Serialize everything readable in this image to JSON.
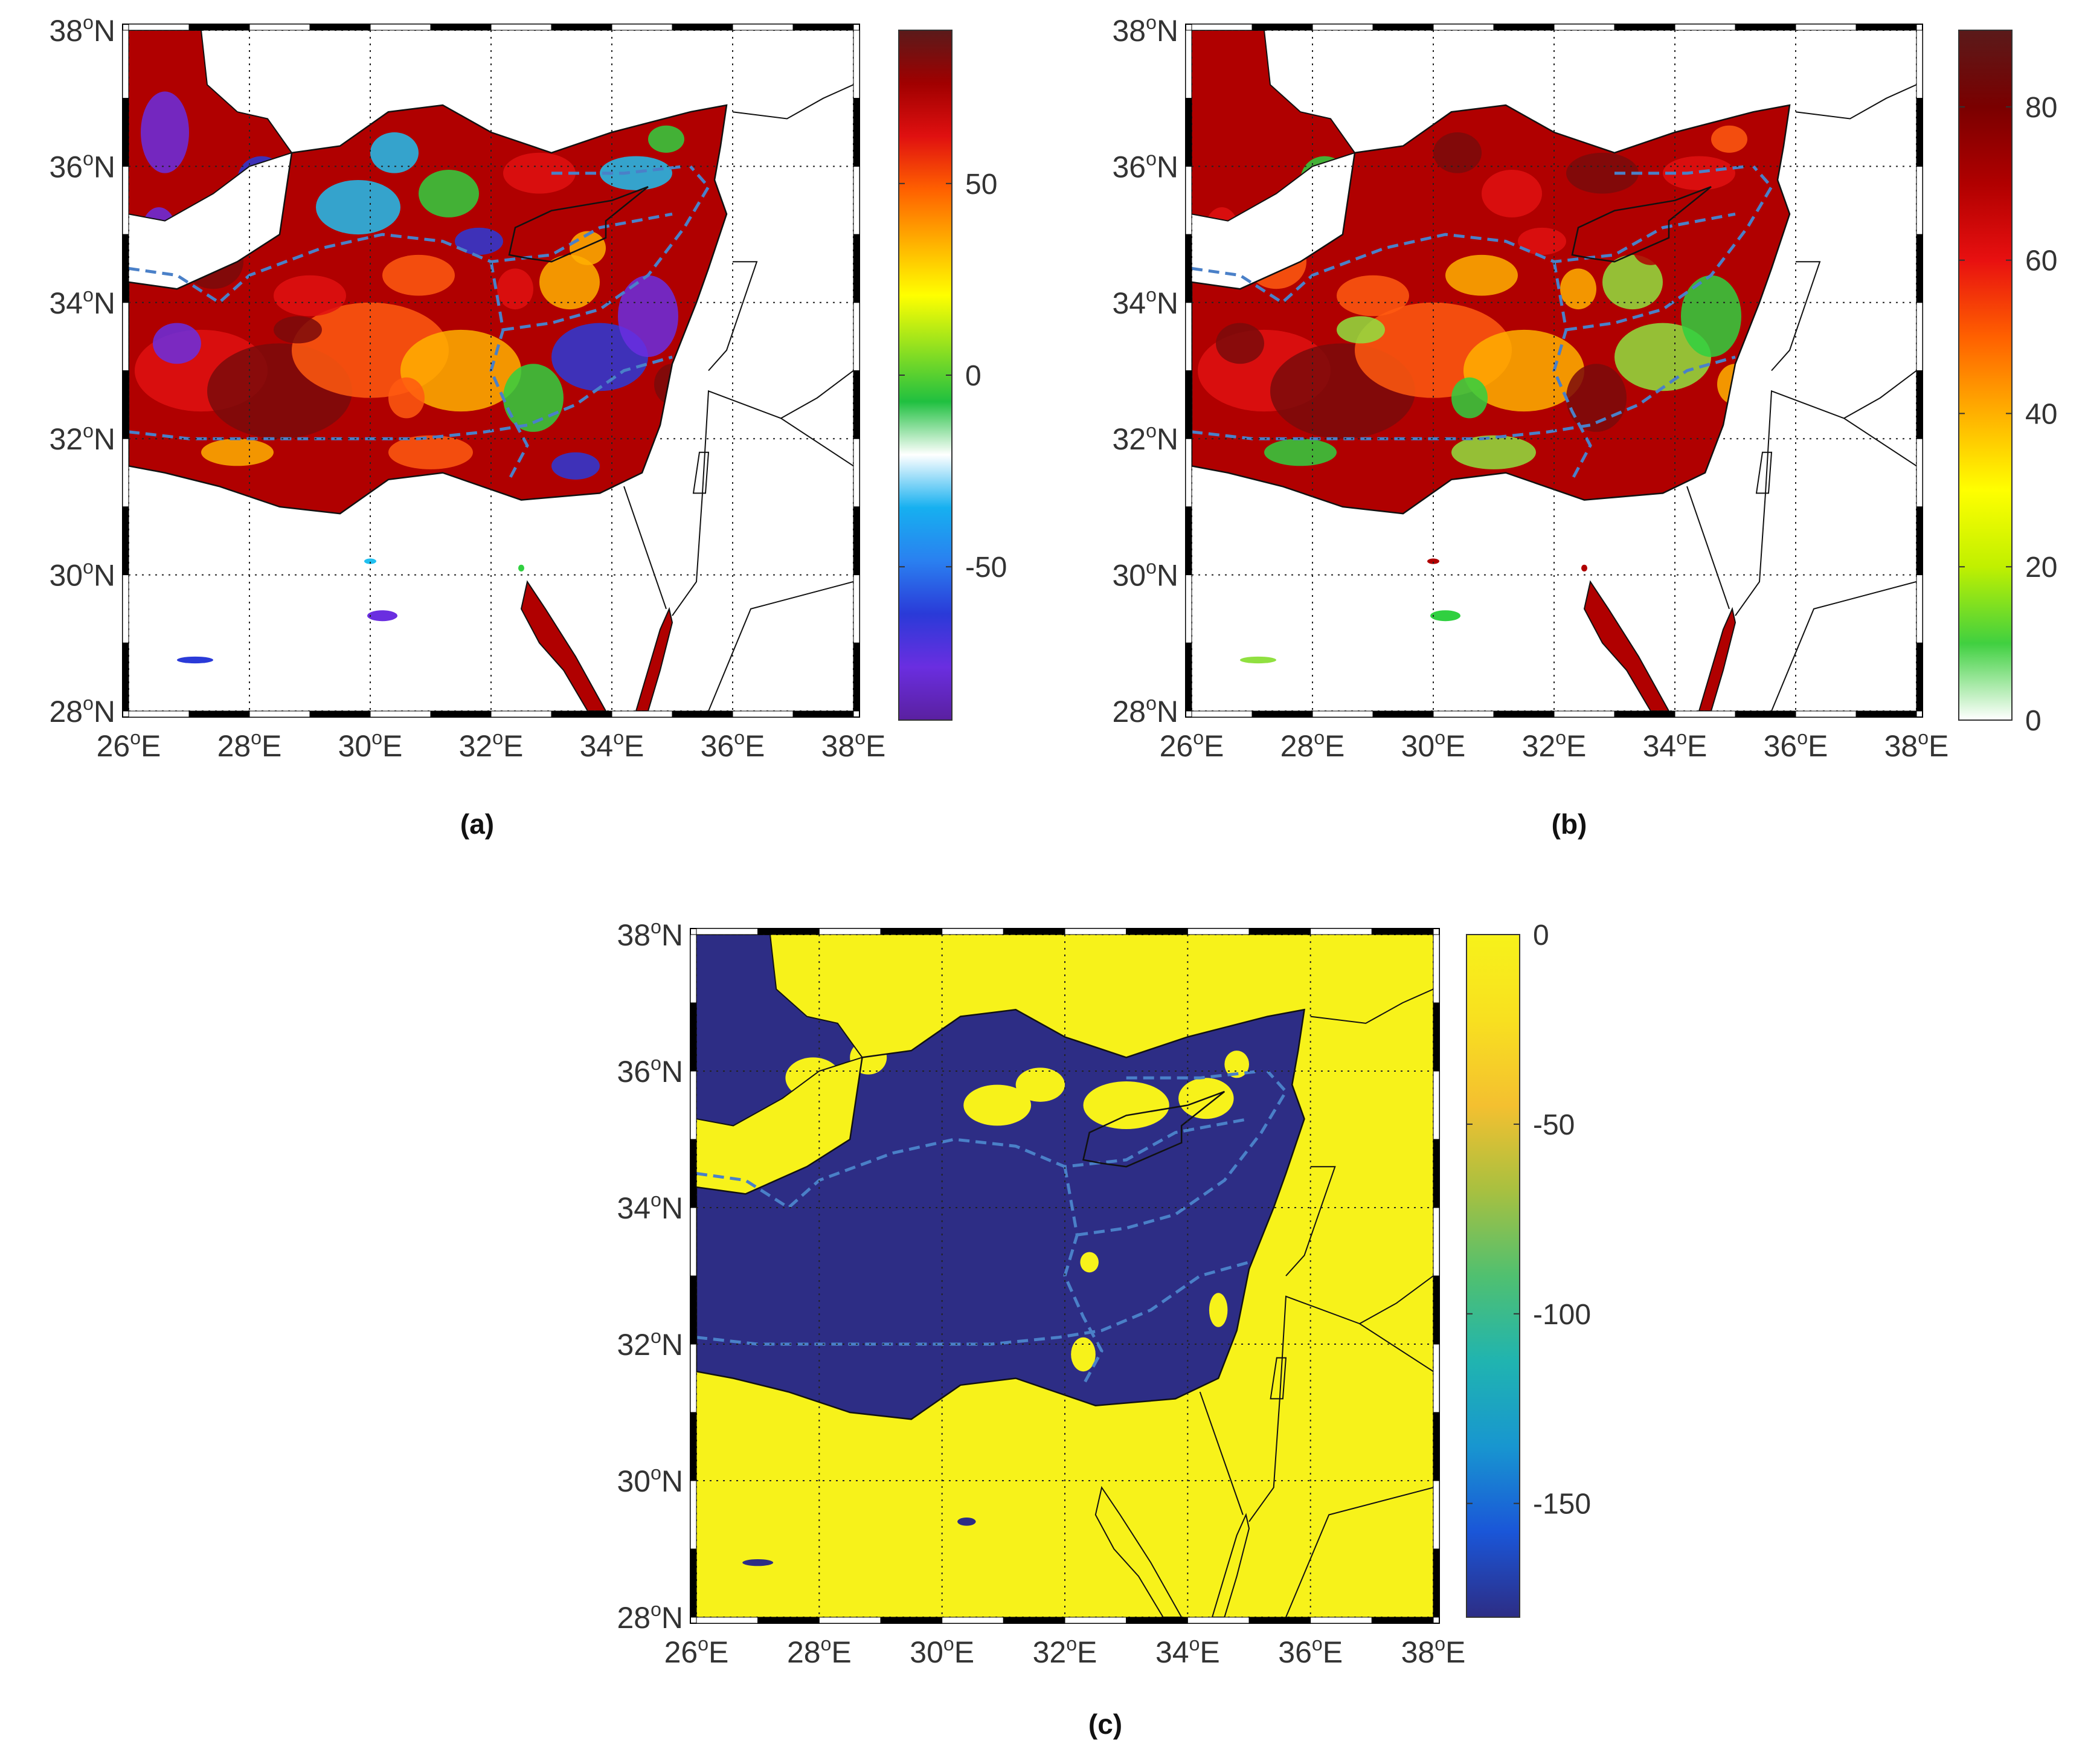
{
  "panels": [
    {
      "id": "a",
      "caption": "(a)",
      "colorbar": {
        "colors": [
          "#5a20a0",
          "#6a2ee0",
          "#2a3ad8",
          "#2a80f0",
          "#16b0f0",
          "#ffffff",
          "#20c040",
          "#90e020",
          "#ffff00",
          "#ffb000",
          "#ff6000",
          "#e01010",
          "#a00000",
          "#5a1a1a"
        ],
        "range": [
          -90,
          90
        ],
        "ticks": [
          {
            "value": 50,
            "label": "50"
          },
          {
            "value": 0,
            "label": "0"
          },
          {
            "value": -50,
            "label": "-50"
          }
        ]
      },
      "field_palette": [
        "#b00000",
        "#e01010",
        "#7a0a0a",
        "#ff5a10",
        "#ffb000",
        "#2a3ad8",
        "#6a2ee0",
        "#20c0f0",
        "#30d040"
      ]
    },
    {
      "id": "b",
      "caption": "(b)",
      "colorbar": {
        "colors": [
          "#ffffff",
          "#40d040",
          "#c0f000",
          "#ffff00",
          "#ffb000",
          "#ff6000",
          "#e81010",
          "#b00000",
          "#7a0000",
          "#5a1a1a"
        ],
        "range": [
          0,
          90
        ],
        "ticks": [
          {
            "value": 80,
            "label": "80"
          },
          {
            "value": 60,
            "label": "60"
          },
          {
            "value": 40,
            "label": "40"
          },
          {
            "value": 20,
            "label": "20"
          },
          {
            "value": 0,
            "label": "0"
          }
        ]
      },
      "field_palette": [
        "#b00000",
        "#e01010",
        "#7a0a0a",
        "#ff5a10",
        "#ffb000",
        "#90e040",
        "#30d040",
        "#b00000"
      ]
    },
    {
      "id": "c",
      "caption": "(c)",
      "colorbar": {
        "colors": [
          "#2d2d85",
          "#1a56d8",
          "#1896d0",
          "#20b4b0",
          "#50c070",
          "#a8c040",
          "#f4c030",
          "#f8e020",
          "#f7f21a"
        ],
        "range": [
          -180,
          0
        ],
        "ticks": [
          {
            "value": 0,
            "label": "0"
          },
          {
            "value": -50,
            "label": "-50"
          },
          {
            "value": -100,
            "label": "-100"
          },
          {
            "value": -150,
            "label": "-150"
          }
        ]
      },
      "sea_color": "#2d2d85",
      "land_color": "#f7f21a"
    }
  ],
  "map": {
    "lon_range": [
      26,
      38
    ],
    "lat_range": [
      28,
      38
    ],
    "lon_ticks": [
      {
        "deg": "26",
        "hemi": "E"
      },
      {
        "deg": "28",
        "hemi": "E"
      },
      {
        "deg": "30",
        "hemi": "E"
      },
      {
        "deg": "32",
        "hemi": "E"
      },
      {
        "deg": "34",
        "hemi": "E"
      },
      {
        "deg": "36",
        "hemi": "E"
      },
      {
        "deg": "38",
        "hemi": "E"
      }
    ],
    "lat_ticks": [
      {
        "deg": "38",
        "hemi": "N"
      },
      {
        "deg": "36",
        "hemi": "N"
      },
      {
        "deg": "34",
        "hemi": "N"
      },
      {
        "deg": "32",
        "hemi": "N"
      },
      {
        "deg": "30",
        "hemi": "N"
      },
      {
        "deg": "28",
        "hemi": "N"
      }
    ],
    "degree_symbol": "o",
    "eez_color": "#4a80c8",
    "coast_color": "#111111"
  }
}
